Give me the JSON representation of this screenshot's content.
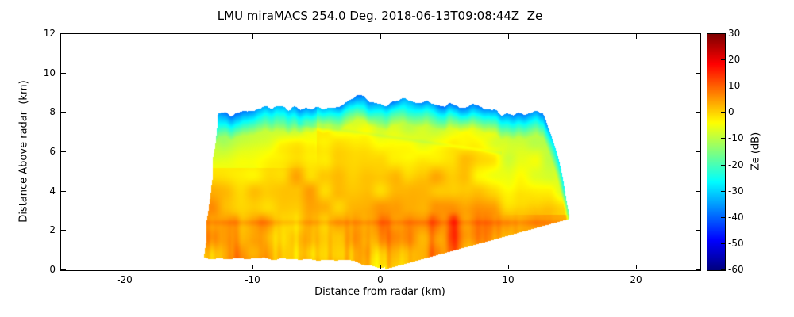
{
  "chart_data": {
    "type": "heatmap",
    "title": "LMU miraMACS 254.0 Deg. 2018-06-13T09:08:44Z  Ze",
    "xlabel": "Distance from radar (km)",
    "ylabel": "Distance Above radar  (km)",
    "xlim": [
      -25,
      25
    ],
    "ylim": [
      0,
      12
    ],
    "xticks": [
      -20,
      -10,
      0,
      10,
      20
    ],
    "yticks": [
      0,
      2,
      4,
      6,
      8,
      10,
      12
    ],
    "grid": false,
    "colormap": "jet",
    "colorbar": {
      "label": "Ze (dB)",
      "min": -60,
      "max": 30,
      "ticks": [
        30,
        20,
        10,
        0,
        -10,
        -20,
        -30,
        -40,
        -50,
        -60
      ]
    },
    "scan": {
      "description": "RHI fan of radar reflectivity Ze; echo mostly -10 to +5 dB, cyan/blue cloud top near 8.5 km, orange-red rain shafts below melting layer",
      "max_range_km": 15.0,
      "x_extent_km": [
        -13.9,
        14.8
      ],
      "cloud_top_mean_km": 8.25,
      "cloud_top_jitter_km": 0.45,
      "lowest_beam_slope_right": 0.178,
      "melting_layer_km": 2.42,
      "ze_db_near_ground": 4,
      "ze_db_mid_level": -5,
      "ze_db_cloud_top": -32,
      "rain_shaft_x_km": [
        5.7,
        4.1,
        0.3,
        -9.3,
        -11.4
      ],
      "rain_shaft_peak_db": [
        15,
        9,
        7,
        7,
        8
      ]
    }
  }
}
